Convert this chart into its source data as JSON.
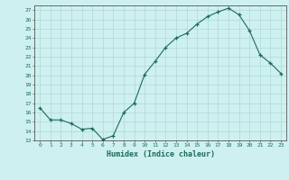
{
  "x": [
    0,
    1,
    2,
    3,
    4,
    5,
    6,
    7,
    8,
    9,
    10,
    11,
    12,
    13,
    14,
    15,
    16,
    17,
    18,
    19,
    20,
    21,
    22,
    23
  ],
  "y": [
    16.5,
    15.2,
    15.2,
    14.8,
    14.2,
    14.3,
    13.1,
    13.5,
    16.0,
    17.0,
    20.1,
    21.5,
    23.0,
    24.0,
    24.5,
    25.5,
    26.3,
    26.8,
    27.2,
    26.5,
    24.8,
    22.2,
    21.3,
    20.2
  ],
  "xlabel": "Humidex (Indice chaleur)",
  "xlim": [
    -0.5,
    23.5
  ],
  "ylim": [
    13,
    27.5
  ],
  "yticks": [
    13,
    14,
    15,
    16,
    17,
    18,
    19,
    20,
    21,
    22,
    23,
    24,
    25,
    26,
    27
  ],
  "xticks": [
    0,
    1,
    2,
    3,
    4,
    5,
    6,
    7,
    8,
    9,
    10,
    11,
    12,
    13,
    14,
    15,
    16,
    17,
    18,
    19,
    20,
    21,
    22,
    23
  ],
  "line_color": "#1a6b5a",
  "marker_color": "#1a6b5a",
  "bg_color": "#cff0f0",
  "grid_color": "#aed8d8",
  "axes_color": "#555555",
  "tick_label_color": "#1a6b5a",
  "xlabel_color": "#1a6b5a"
}
